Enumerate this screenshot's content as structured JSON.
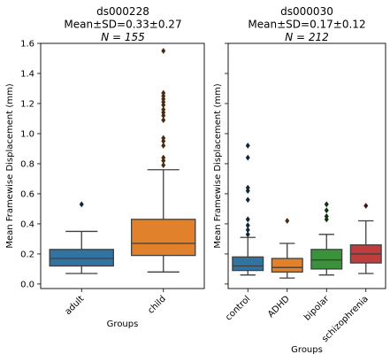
{
  "chart_data": [
    {
      "type": "box",
      "title_lines": [
        "ds000228",
        "Mean±SD=0.33±0.27",
        "N = 155"
      ],
      "xlabel": "Groups",
      "ylabel": "Mean Framewise Displacement (mm)",
      "ylim": [
        -0.03,
        1.6
      ],
      "yticks": [
        "0.0",
        "0.2",
        "0.4",
        "0.6",
        "0.8",
        "1.0",
        "1.2",
        "1.4",
        "1.6"
      ],
      "grid": false,
      "categories": [
        "adult",
        "child"
      ],
      "boxes": [
        {
          "name": "adult",
          "color": "#3274a1",
          "whisker_low": 0.07,
          "q1": 0.12,
          "median": 0.17,
          "q3": 0.23,
          "whisker_high": 0.35,
          "outliers": [
            0.53
          ]
        },
        {
          "name": "child",
          "color": "#e1812c",
          "whisker_low": 0.08,
          "q1": 0.19,
          "median": 0.27,
          "q3": 0.43,
          "whisker_high": 0.76,
          "outliers": [
            0.79,
            0.82,
            0.84,
            0.92,
            0.95,
            0.97,
            1.09,
            1.12,
            1.14,
            1.16,
            1.19,
            1.21,
            1.23,
            1.25,
            1.27,
            1.55
          ]
        }
      ]
    },
    {
      "type": "box",
      "title_lines": [
        "ds000030",
        "Mean±SD=0.17±0.12",
        "N = 212"
      ],
      "xlabel": "Groups",
      "ylabel": "Mean Framewise Displacement (mm)",
      "ylim": [
        -0.03,
        1.6
      ],
      "yticks": [
        "",
        "",
        "",
        "",
        "",
        "",
        "",
        "",
        ""
      ],
      "grid": false,
      "categories": [
        "control",
        "ADHD",
        "bipolar",
        "schizophrenia"
      ],
      "boxes": [
        {
          "name": "control",
          "color": "#3274a1",
          "whisker_low": 0.06,
          "q1": 0.09,
          "median": 0.12,
          "q3": 0.18,
          "whisker_high": 0.31,
          "outliers": [
            0.33,
            0.36,
            0.39,
            0.43,
            0.56,
            0.62,
            0.64,
            0.84,
            0.92
          ]
        },
        {
          "name": "ADHD",
          "color": "#e1812c",
          "whisker_low": 0.04,
          "q1": 0.08,
          "median": 0.11,
          "q3": 0.17,
          "whisker_high": 0.27,
          "outliers": [
            0.42
          ]
        },
        {
          "name": "bipolar",
          "color": "#3a923a",
          "whisker_low": 0.06,
          "q1": 0.1,
          "median": 0.16,
          "q3": 0.23,
          "whisker_high": 0.33,
          "outliers": [
            0.43,
            0.45,
            0.49,
            0.53
          ]
        },
        {
          "name": "schizophrenia",
          "color": "#c03d3e",
          "whisker_low": 0.07,
          "q1": 0.14,
          "median": 0.2,
          "q3": 0.26,
          "whisker_high": 0.42,
          "outliers": [
            0.52
          ]
        }
      ]
    }
  ]
}
